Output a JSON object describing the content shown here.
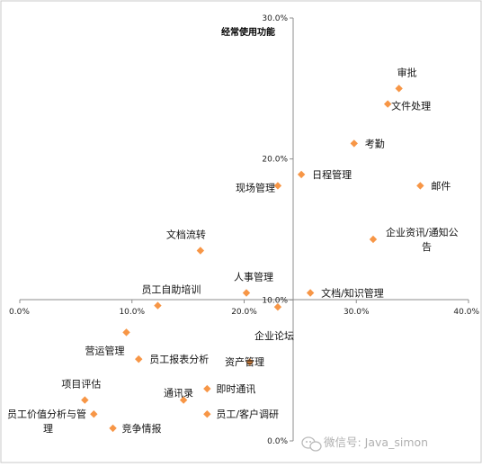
{
  "chart_data": {
    "type": "scatter",
    "title": "经常使用功能",
    "xlim": [
      0,
      40
    ],
    "ylim": [
      0,
      30
    ],
    "x_tick_labels": [
      "0.0%",
      "10.0%",
      "20.0%",
      "30.0%",
      "40.0%"
    ],
    "x_tick_values": [
      0,
      10,
      20,
      30,
      40
    ],
    "y_tick_labels": [
      "0.0%",
      "10.0%",
      "20.0%",
      "30.0%"
    ],
    "y_tick_values": [
      0,
      10,
      20,
      30
    ],
    "marker_color": "#f79646",
    "grid": false,
    "points": [
      {
        "label": "审批",
        "x": 33.8,
        "y": 25.0
      },
      {
        "label": "文件处理",
        "x": 32.8,
        "y": 23.9
      },
      {
        "label": "考勤",
        "x": 29.8,
        "y": 21.1
      },
      {
        "label": "日程管理",
        "x": 25.1,
        "y": 18.9
      },
      {
        "label": "现场管理",
        "x": 23.0,
        "y": 18.1
      },
      {
        "label": "邮件",
        "x": 35.7,
        "y": 18.1
      },
      {
        "label": "企业资讯/通知公告",
        "x": 31.5,
        "y": 14.3
      },
      {
        "label": "文档流转",
        "x": 16.1,
        "y": 13.5
      },
      {
        "label": "人事管理",
        "x": 20.2,
        "y": 10.5
      },
      {
        "label": "文档/知识管理",
        "x": 25.9,
        "y": 10.5
      },
      {
        "label": "员工自助培训",
        "x": 12.3,
        "y": 9.6
      },
      {
        "label": "企业论坛",
        "x": 23.0,
        "y": 9.5
      },
      {
        "label": "营运管理",
        "x": 9.5,
        "y": 7.7
      },
      {
        "label": "员工报表分析",
        "x": 10.6,
        "y": 5.8
      },
      {
        "label": "资产管理",
        "x": 20.5,
        "y": 5.6
      },
      {
        "label": "即时通讯",
        "x": 16.7,
        "y": 3.7
      },
      {
        "label": "通讯录",
        "x": 14.6,
        "y": 2.9
      },
      {
        "label": "项目评估",
        "x": 5.8,
        "y": 2.9
      },
      {
        "label": "员工价值分析与管理",
        "x": 6.6,
        "y": 1.9
      },
      {
        "label": "员工/客户调研",
        "x": 16.7,
        "y": 1.9
      },
      {
        "label": "竞争情报",
        "x": 8.3,
        "y": 0.9
      }
    ]
  },
  "watermark": {
    "text": "微信号: Java_simon",
    "icon": "wechat-icon"
  }
}
